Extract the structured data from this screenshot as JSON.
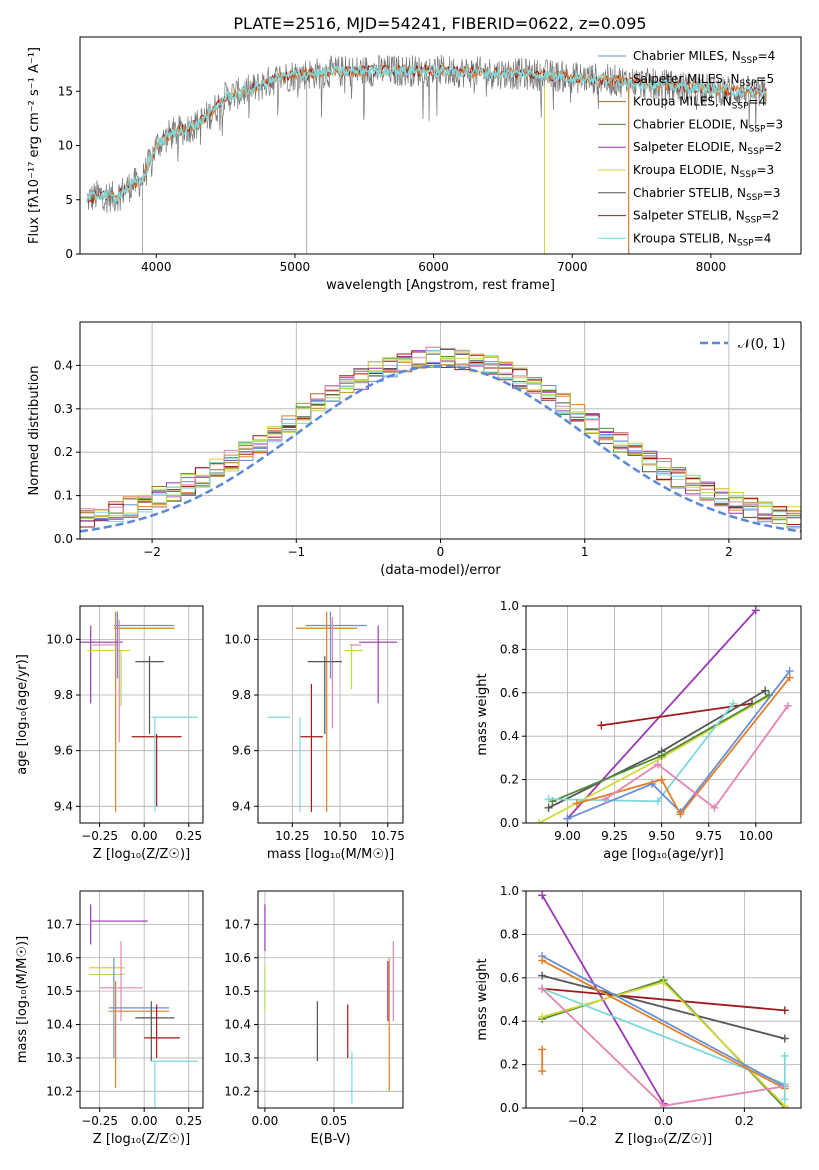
{
  "title": "PLATE=2516, MJD=54241, FIBERID=0622, z=0.095",
  "colors": {
    "Chabrier MILES": "#6a8fd6",
    "Salpeter MILES": "#e0802a",
    "Kroupa MILES": "#a86b2a",
    "Chabrier ELODIE": "#4e8c3a",
    "Salpeter ELODIE": "#9b36b3",
    "Kroupa ELODIE": "#d6d63a",
    "Chabrier STELIB": "#555555",
    "Salpeter STELIB": "#a01818",
    "Kroupa STELIB": "#7dd8dc",
    "Pink": "#e485b5",
    "Lime": "#b4dc4a",
    "Orange2": "#e0802a",
    "Normal": "#5a87d6"
  },
  "chart_data": [
    {
      "type": "line",
      "id": "spectrum",
      "xlabel": "wavelength [Angstrom, rest frame]",
      "ylabel": "Flux [fλ10⁻¹⁷ erg cm⁻² s⁻¹ A⁻¹]",
      "xlim": [
        3450,
        8650
      ],
      "ylim": [
        0,
        20
      ],
      "xticks": [
        "4000",
        "5000",
        "6000",
        "7000",
        "8000"
      ],
      "yticks": [
        "0",
        "5",
        "10",
        "15"
      ],
      "continuum_x": [
        3500,
        3600,
        3700,
        3800,
        3900,
        4000,
        4100,
        4200,
        4300,
        4400,
        4500,
        4600,
        4700,
        4800,
        4900,
        5000,
        5100,
        5200,
        5300,
        5400,
        5500,
        5600,
        5700,
        5800,
        5900,
        6000,
        6200,
        6400,
        6600,
        6800,
        7000,
        7200,
        7400,
        7600,
        7800,
        8000,
        8200,
        8400
      ],
      "continuum_y": [
        5.0,
        5.5,
        5.2,
        6.2,
        6.8,
        10.0,
        11.0,
        11.5,
        12.0,
        13.0,
        14.5,
        14.8,
        15.2,
        15.8,
        16.3,
        16.5,
        16.6,
        16.7,
        16.8,
        16.8,
        16.9,
        16.9,
        16.9,
        16.9,
        16.9,
        16.9,
        16.8,
        16.7,
        16.6,
        16.5,
        16.3,
        16.1,
        15.9,
        15.6,
        15.4,
        15.2,
        15.0,
        14.8
      ],
      "legend": [
        {
          "name": "Chabrier MILES",
          "nssp": "4"
        },
        {
          "name": "Salpeter MILES",
          "nssp": "5"
        },
        {
          "name": "Kroupa MILES",
          "nssp": "4"
        },
        {
          "name": "Chabrier ELODIE",
          "nssp": "3"
        },
        {
          "name": "Salpeter ELODIE",
          "nssp": "2"
        },
        {
          "name": "Kroupa ELODIE",
          "nssp": "3"
        },
        {
          "name": "Chabrier STELIB",
          "nssp": "3"
        },
        {
          "name": "Salpeter STELIB",
          "nssp": "2"
        },
        {
          "name": "Kroupa STELIB",
          "nssp": "4"
        }
      ]
    },
    {
      "type": "histogram",
      "id": "residuals",
      "xlabel": "(data-model)/error",
      "ylabel": "Normed distribution",
      "xlim": [
        -2.5,
        2.5
      ],
      "ylim": [
        0,
        0.5
      ],
      "xticks": [
        "−2",
        "−1",
        "0",
        "1",
        "2"
      ],
      "yticks": [
        "0.0",
        "0.1",
        "0.2",
        "0.3",
        "0.4"
      ],
      "bin_width": 0.1,
      "legend": "𝒩(0, 1)"
    },
    {
      "type": "errorbar",
      "id": "age_vs_Z",
      "xlabel": "Z [log₁₀(Z/Z☉)]",
      "ylabel": "age  [log₁₀(age/yr)]",
      "xlim": [
        -0.36,
        0.33
      ],
      "ylim": [
        9.34,
        10.12
      ],
      "xticks": [
        "−0.25",
        "0.00",
        "0.25"
      ],
      "yticks": [
        "9.4",
        "9.6",
        "9.8",
        "10.0"
      ],
      "points": [
        {
          "c": "Chabrier MILES",
          "x": 0.0,
          "y": 10.05,
          "xe": 0.17,
          "ye": 0.0
        },
        {
          "c": "Salpeter MILES",
          "x": 0.0,
          "y": 10.04,
          "xe": 0.17,
          "ye": 0.0
        },
        {
          "c": "Salpeter MILES",
          "x": -0.16,
          "y": 9.74,
          "xe": 0.0,
          "ye": 0.36
        },
        {
          "c": "Salpeter ELODIE",
          "x": -0.3,
          "y": 9.91,
          "xe": 0.0,
          "ye": 0.14
        },
        {
          "c": "Salpeter ELODIE",
          "x": -0.24,
          "y": 9.99,
          "xe": 0.12,
          "ye": 0.0
        },
        {
          "c": "Kroupa ELODIE",
          "x": -0.2,
          "y": 9.96,
          "xe": 0.12,
          "ye": 0.0
        },
        {
          "c": "Lime",
          "x": -0.13,
          "y": 9.86,
          "xe": 0.0,
          "ye": 0.1
        },
        {
          "c": "Pink",
          "x": -0.22,
          "y": 9.98,
          "xe": 0.07,
          "ye": 0.0
        },
        {
          "c": "Pink",
          "x": -0.14,
          "y": 9.85,
          "xe": 0.0,
          "ye": 0.22
        },
        {
          "c": "Chabrier STELIB",
          "x": 0.03,
          "y": 9.92,
          "xe": 0.08,
          "ye": 0.0
        },
        {
          "c": "Chabrier STELIB",
          "x": 0.03,
          "y": 9.8,
          "xe": 0.0,
          "ye": 0.14
        },
        {
          "c": "Salpeter STELIB",
          "x": 0.07,
          "y": 9.65,
          "xe": 0.14,
          "ye": 0.0
        },
        {
          "c": "Salpeter STELIB",
          "x": 0.07,
          "y": 9.53,
          "xe": 0.0,
          "ye": 0.13
        },
        {
          "c": "Kroupa STELIB",
          "x": 0.17,
          "y": 9.72,
          "xe": 0.13,
          "ye": 0.0
        },
        {
          "c": "Kroupa STELIB",
          "x": 0.06,
          "y": 9.55,
          "xe": 0.0,
          "ye": 0.17
        },
        {
          "c": "Chabrier MILES",
          "x": -0.15,
          "y": 9.98,
          "xe": 0.0,
          "ye": 0.12
        }
      ]
    },
    {
      "type": "errorbar",
      "id": "age_vs_mass",
      "xlabel": "mass [log₁₀(M/M☉)]",
      "ylabel": "",
      "xlim": [
        10.07,
        10.83
      ],
      "ylim": [
        9.34,
        10.12
      ],
      "xticks": [
        "10.25",
        "10.50",
        "10.75"
      ],
      "yticks": [
        "9.4",
        "9.6",
        "9.8",
        "10.0"
      ],
      "points": [
        {
          "c": "Chabrier MILES",
          "x": 10.48,
          "y": 10.05,
          "xe": 0.16,
          "ye": 0.0
        },
        {
          "c": "Salpeter MILES",
          "x": 10.43,
          "y": 10.04,
          "xe": 0.16,
          "ye": 0.0
        },
        {
          "c": "Salpeter MILES",
          "x": 10.43,
          "y": 9.74,
          "xe": 0.0,
          "ye": 0.36
        },
        {
          "c": "Salpeter ELODIE",
          "x": 10.7,
          "y": 9.99,
          "xe": 0.1,
          "ye": 0.0
        },
        {
          "c": "Salpeter ELODIE",
          "x": 10.7,
          "y": 9.91,
          "xe": 0.0,
          "ye": 0.14
        },
        {
          "c": "Kroupa ELODIE",
          "x": 10.57,
          "y": 9.96,
          "xe": 0.05,
          "ye": 0.0
        },
        {
          "c": "Lime",
          "x": 10.56,
          "y": 9.9,
          "xe": 0.0,
          "ye": 0.08
        },
        {
          "c": "Pink",
          "x": 10.58,
          "y": 9.98,
          "xe": 0.03,
          "ye": 0.0
        },
        {
          "c": "Pink",
          "x": 10.46,
          "y": 9.88,
          "xe": 0.0,
          "ye": 0.2
        },
        {
          "c": "Chabrier STELIB",
          "x": 10.42,
          "y": 9.92,
          "xe": 0.09,
          "ye": 0.0
        },
        {
          "c": "Chabrier STELIB",
          "x": 10.42,
          "y": 9.8,
          "xe": 0.0,
          "ye": 0.14
        },
        {
          "c": "Salpeter STELIB",
          "x": 10.35,
          "y": 9.65,
          "xe": 0.06,
          "ye": 0.0
        },
        {
          "c": "Salpeter STELIB",
          "x": 10.35,
          "y": 9.61,
          "xe": 0.0,
          "ye": 0.23
        },
        {
          "c": "Kroupa STELIB",
          "x": 10.18,
          "y": 9.72,
          "xe": 0.06,
          "ye": 0.0
        },
        {
          "c": "Kroupa STELIB",
          "x": 10.29,
          "y": 9.55,
          "xe": 0.0,
          "ye": 0.17
        },
        {
          "c": "Chabrier MILES",
          "x": 10.45,
          "y": 9.98,
          "xe": 0.0,
          "ye": 0.12
        }
      ]
    },
    {
      "type": "line",
      "id": "mass_weight_vs_age",
      "xlabel": "age  [log₁₀(age/yr)]",
      "ylabel": "mass weight",
      "xlim": [
        8.78,
        10.24
      ],
      "ylim": [
        0,
        1.0
      ],
      "xticks": [
        "9.00",
        "9.25",
        "9.50",
        "9.75",
        "10.00"
      ],
      "yticks": [
        "0.0",
        "0.2",
        "0.4",
        "0.6",
        "0.8",
        "1.0"
      ],
      "series": [
        {
          "c": "Salpeter ELODIE",
          "x": [
            9.0,
            10.0
          ],
          "y": [
            0.02,
            0.98
          ]
        },
        {
          "c": "Salpeter STELIB",
          "x": [
            9.18,
            9.98
          ],
          "y": [
            0.45,
            0.55
          ]
        },
        {
          "c": "Chabrier STELIB",
          "x": [
            8.9,
            9.5,
            10.05
          ],
          "y": [
            0.07,
            0.33,
            0.61
          ]
        },
        {
          "c": "Kroupa ELODIE",
          "x": [
            8.85,
            9.5,
            10.06
          ],
          "y": [
            0.0,
            0.3,
            0.58
          ]
        },
        {
          "c": "Chabrier ELODIE",
          "x": [
            8.92,
            9.5,
            10.07
          ],
          "y": [
            0.1,
            0.31,
            0.59
          ]
        },
        {
          "c": "Kroupa STELIB",
          "x": [
            8.9,
            9.48,
            9.88
          ],
          "y": [
            0.11,
            0.1,
            0.55
          ]
        },
        {
          "c": "Chabrier MILES",
          "x": [
            9.0,
            9.45,
            9.6,
            10.18
          ],
          "y": [
            0.02,
            0.18,
            0.05,
            0.7
          ]
        },
        {
          "c": "Salpeter MILES",
          "x": [
            9.05,
            9.5,
            9.6,
            10.18
          ],
          "y": [
            0.09,
            0.2,
            0.04,
            0.67
          ]
        },
        {
          "c": "Pink",
          "x": [
            9.2,
            9.48,
            9.78,
            10.17
          ],
          "y": [
            0.11,
            0.27,
            0.07,
            0.54
          ]
        }
      ]
    },
    {
      "type": "errorbar",
      "id": "mass_vs_Z",
      "xlabel": "Z [log₁₀(Z/Z☉)]",
      "ylabel": "mass [log₁₀(M/M☉)]",
      "xlim": [
        -0.36,
        0.33
      ],
      "ylim": [
        10.15,
        10.8
      ],
      "xticks": [
        "−0.25",
        "0.00",
        "0.25"
      ],
      "yticks": [
        "10.2",
        "10.3",
        "10.4",
        "10.5",
        "10.6",
        "10.7"
      ],
      "points": [
        {
          "c": "Salpeter ELODIE",
          "x": -0.14,
          "y": 10.71,
          "xe": 0.16,
          "ye": 0.0
        },
        {
          "c": "Salpeter ELODIE",
          "x": -0.3,
          "y": 10.7,
          "xe": 0.0,
          "ye": 0.06
        },
        {
          "c": "Kroupa ELODIE",
          "x": -0.21,
          "y": 10.57,
          "xe": 0.1,
          "ye": 0.0
        },
        {
          "c": "Lime",
          "x": -0.21,
          "y": 10.55,
          "xe": 0.1,
          "ye": 0.0
        },
        {
          "c": "Pink",
          "x": -0.13,
          "y": 10.51,
          "xe": 0.12,
          "ye": 0.0
        },
        {
          "c": "Pink",
          "x": -0.13,
          "y": 10.53,
          "xe": 0.0,
          "ye": 0.12
        },
        {
          "c": "Chabrier MILES",
          "x": -0.17,
          "y": 10.45,
          "xe": 0.0,
          "ye": 0.15
        },
        {
          "c": "Chabrier MILES",
          "x": -0.03,
          "y": 10.45,
          "xe": 0.17,
          "ye": 0.0
        },
        {
          "c": "Salpeter MILES",
          "x": -0.03,
          "y": 10.44,
          "xe": 0.17,
          "ye": 0.0
        },
        {
          "c": "Salpeter MILES",
          "x": -0.16,
          "y": 10.37,
          "xe": 0.0,
          "ye": 0.16
        },
        {
          "c": "Chabrier STELIB",
          "x": 0.06,
          "y": 10.42,
          "xe": 0.11,
          "ye": 0.0
        },
        {
          "c": "Chabrier STELIB",
          "x": 0.04,
          "y": 10.38,
          "xe": 0.0,
          "ye": 0.09
        },
        {
          "c": "Salpeter STELIB",
          "x": 0.1,
          "y": 10.36,
          "xe": 0.1,
          "ye": 0.0
        },
        {
          "c": "Salpeter STELIB",
          "x": 0.07,
          "y": 10.38,
          "xe": 0.0,
          "ye": 0.08
        },
        {
          "c": "Kroupa STELIB",
          "x": 0.17,
          "y": 10.29,
          "xe": 0.13,
          "ye": 0.0
        },
        {
          "c": "Kroupa STELIB",
          "x": 0.06,
          "y": 10.22,
          "xe": 0.0,
          "ye": 0.07
        }
      ]
    },
    {
      "type": "errorbar",
      "id": "mass_vs_ebv",
      "xlabel": "E(B-V)",
      "ylabel": "",
      "xlim": [
        -0.005,
        0.1
      ],
      "ylim": [
        10.15,
        10.8
      ],
      "xticks": [
        "0.00",
        "0.05"
      ],
      "yticks": [
        "10.2",
        "10.3",
        "10.4",
        "10.5",
        "10.6",
        "10.7"
      ],
      "points": [
        {
          "c": "Salpeter ELODIE",
          "x": 0.0,
          "y": 10.69,
          "xe": 0.0,
          "ye": 0.07
        },
        {
          "c": "Lime",
          "x": 0.0,
          "y": 10.51,
          "xe": 0.0,
          "ye": 0.07
        },
        {
          "c": "Chabrier STELIB",
          "x": 0.038,
          "y": 10.38,
          "xe": 0.0,
          "ye": 0.09
        },
        {
          "c": "Salpeter STELIB",
          "x": 0.06,
          "y": 10.38,
          "xe": 0.0,
          "ye": 0.08
        },
        {
          "c": "Kroupa STELIB",
          "x": 0.063,
          "y": 10.24,
          "xe": 0.0,
          "ye": 0.08
        },
        {
          "c": "Salpeter MILES",
          "x": 0.09,
          "y": 10.4,
          "xe": 0.0,
          "ye": 0.2
        },
        {
          "c": "Pink",
          "x": 0.093,
          "y": 10.53,
          "xe": 0.0,
          "ye": 0.12
        },
        {
          "c": "Salpeter ELODIE",
          "x": 0.089,
          "y": 10.5,
          "xe": 0.0,
          "ye": 0.09
        }
      ]
    },
    {
      "type": "line",
      "id": "mass_weight_vs_Z",
      "xlabel": "Z [log₁₀(Z/Z☉)]",
      "ylabel": "mass weight",
      "xlim": [
        -0.34,
        0.34
      ],
      "ylim": [
        0,
        1.0
      ],
      "xticks": [
        "−0.2",
        "0.0",
        "0.2"
      ],
      "yticks": [
        "0.0",
        "0.2",
        "0.4",
        "0.6",
        "0.8",
        "1.0"
      ],
      "series": [
        {
          "c": "Salpeter ELODIE",
          "x": [
            -0.3,
            0.0
          ],
          "y": [
            0.98,
            0.02
          ]
        },
        {
          "c": "Salpeter STELIB",
          "x": [
            -0.3,
            0.3
          ],
          "y": [
            0.55,
            0.45
          ]
        },
        {
          "c": "Chabrier STELIB",
          "x": [
            -0.3,
            0.3
          ],
          "y": [
            0.61,
            0.32
          ]
        },
        {
          "c": "Chabrier ELODIE",
          "x": [
            -0.3,
            0.0,
            0.3
          ],
          "y": [
            0.41,
            0.59,
            0.0
          ]
        },
        {
          "c": "Kroupa ELODIE",
          "x": [
            -0.3,
            0.0,
            0.3
          ],
          "y": [
            0.42,
            0.58,
            0.01
          ]
        },
        {
          "c": "Kroupa STELIB",
          "x": [
            -0.3,
            0.3
          ],
          "y": [
            0.55,
            0.11
          ]
        },
        {
          "c": "Chabrier MILES",
          "x": [
            -0.3,
            0.3
          ],
          "y": [
            0.7,
            0.1
          ]
        },
        {
          "c": "Salpeter MILES",
          "x": [
            -0.3,
            0.3
          ],
          "y": [
            0.68,
            0.09
          ]
        },
        {
          "c": "Pink",
          "x": [
            -0.3,
            0.0,
            0.3
          ],
          "y": [
            0.55,
            0.01,
            0.1
          ]
        },
        {
          "c": "Kroupa STELIB",
          "x": [
            0.3,
            0.3
          ],
          "y": [
            0.24,
            0.04
          ]
        },
        {
          "c": "Salpeter MILES",
          "x": [
            -0.3,
            -0.3
          ],
          "y": [
            0.27,
            0.17
          ]
        }
      ]
    }
  ]
}
